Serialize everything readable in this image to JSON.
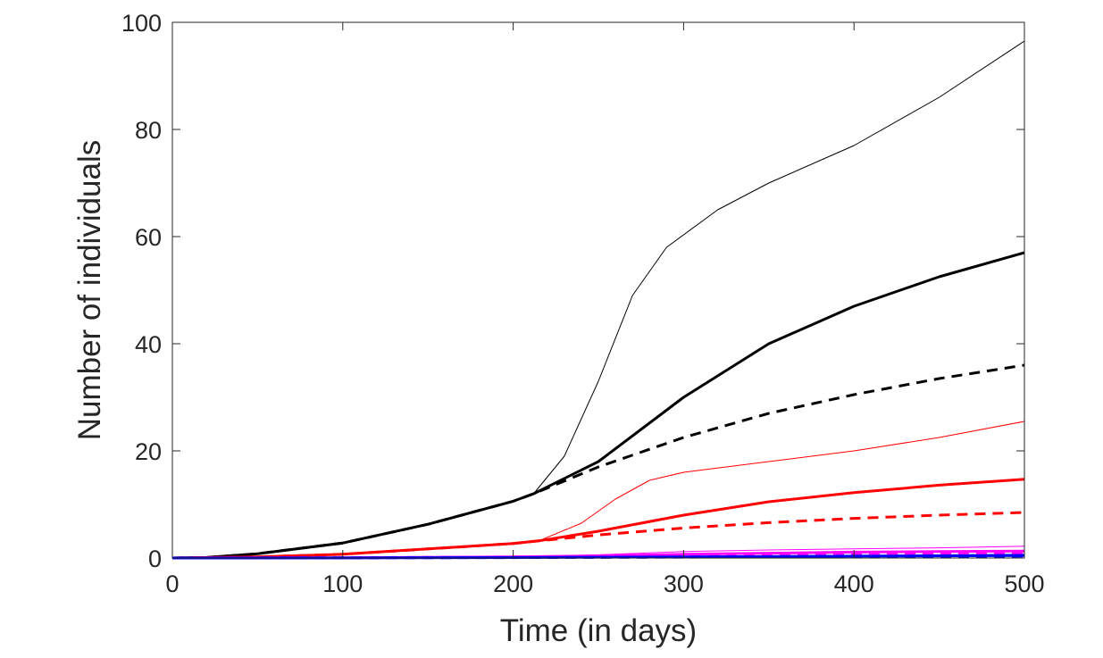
{
  "chart_data": {
    "type": "line",
    "title": "",
    "xlabel": "Time (in days)",
    "ylabel": "Number of individuals",
    "xlim": [
      0,
      500
    ],
    "ylim": [
      0,
      100
    ],
    "xticks": [
      0,
      100,
      200,
      300,
      400,
      500
    ],
    "yticks": [
      0,
      20,
      40,
      60,
      80,
      100
    ],
    "grid": false,
    "legend": "none",
    "series": [
      {
        "color": "#000000",
        "style": "solid",
        "weight": "thin",
        "x": [
          0,
          20,
          50,
          100,
          150,
          200,
          212,
          230,
          250,
          270,
          290,
          320,
          350,
          400,
          450,
          500
        ],
        "y": [
          0,
          0.1,
          0.8,
          2.8,
          6.3,
          10.6,
          12,
          19,
          33,
          49,
          58,
          65,
          70,
          77,
          86,
          96.5
        ]
      },
      {
        "color": "#000000",
        "style": "solid",
        "weight": "thick",
        "x": [
          0,
          20,
          50,
          100,
          150,
          200,
          212,
          250,
          300,
          350,
          400,
          450,
          500
        ],
        "y": [
          0,
          0.1,
          0.8,
          2.8,
          6.3,
          10.6,
          12,
          18,
          30,
          40,
          47,
          52.5,
          57
        ]
      },
      {
        "color": "#000000",
        "style": "dashed",
        "weight": "thick",
        "x": [
          0,
          20,
          50,
          100,
          150,
          200,
          212,
          250,
          300,
          350,
          400,
          450,
          500
        ],
        "y": [
          0,
          0.1,
          0.8,
          2.8,
          6.3,
          10.6,
          12,
          17,
          22.5,
          27,
          30.5,
          33.5,
          36
        ]
      },
      {
        "color": "#ff0000",
        "style": "solid",
        "weight": "thin",
        "x": [
          0,
          50,
          100,
          150,
          200,
          215,
          240,
          260,
          280,
          300,
          350,
          400,
          450,
          500
        ],
        "y": [
          0,
          0.2,
          0.7,
          1.7,
          2.7,
          3.2,
          6.5,
          11,
          14.5,
          16,
          18,
          20,
          22.5,
          25.5
        ]
      },
      {
        "color": "#ff0000",
        "style": "solid",
        "weight": "thick",
        "x": [
          0,
          50,
          100,
          150,
          200,
          215,
          250,
          300,
          350,
          400,
          450,
          500
        ],
        "y": [
          0,
          0.2,
          0.7,
          1.7,
          2.7,
          3.2,
          5,
          8,
          10.5,
          12.2,
          13.6,
          14.7
        ]
      },
      {
        "color": "#ff0000",
        "style": "dashed",
        "weight": "thick",
        "x": [
          0,
          50,
          100,
          150,
          200,
          215,
          250,
          300,
          350,
          400,
          450,
          500
        ],
        "y": [
          0,
          0.2,
          0.7,
          1.7,
          2.7,
          3.2,
          4.3,
          5.6,
          6.6,
          7.4,
          8,
          8.5
        ]
      },
      {
        "color": "#ff00ff",
        "style": "solid",
        "weight": "thin",
        "x": [
          0,
          100,
          200,
          250,
          300,
          350,
          400,
          450,
          500
        ],
        "y": [
          0,
          0.05,
          0.2,
          0.6,
          1.2,
          1.5,
          1.7,
          1.9,
          2.2
        ]
      },
      {
        "color": "#ff00ff",
        "style": "solid",
        "weight": "thick",
        "x": [
          0,
          100,
          200,
          250,
          300,
          350,
          400,
          450,
          500
        ],
        "y": [
          0,
          0.05,
          0.2,
          0.4,
          0.7,
          0.9,
          1.1,
          1.2,
          1.3
        ]
      },
      {
        "color": "#ff00ff",
        "style": "dashed",
        "weight": "thick",
        "x": [
          0,
          100,
          200,
          250,
          300,
          350,
          400,
          450,
          500
        ],
        "y": [
          0,
          0.05,
          0.2,
          0.35,
          0.5,
          0.65,
          0.8,
          0.9,
          1.0
        ]
      },
      {
        "color": "#0000ff",
        "style": "solid",
        "weight": "thin",
        "x": [
          0,
          100,
          200,
          300,
          400,
          500
        ],
        "y": [
          0,
          0.02,
          0.1,
          0.3,
          0.5,
          0.7
        ]
      },
      {
        "color": "#0000ff",
        "style": "solid",
        "weight": "thick",
        "x": [
          0,
          100,
          200,
          300,
          400,
          500
        ],
        "y": [
          0,
          0.02,
          0.08,
          0.2,
          0.35,
          0.45
        ]
      },
      {
        "color": "#0000ff",
        "style": "dashed",
        "weight": "thick",
        "x": [
          0,
          100,
          200,
          300,
          400,
          500
        ],
        "y": [
          0,
          0.02,
          0.07,
          0.15,
          0.25,
          0.35
        ]
      }
    ]
  }
}
